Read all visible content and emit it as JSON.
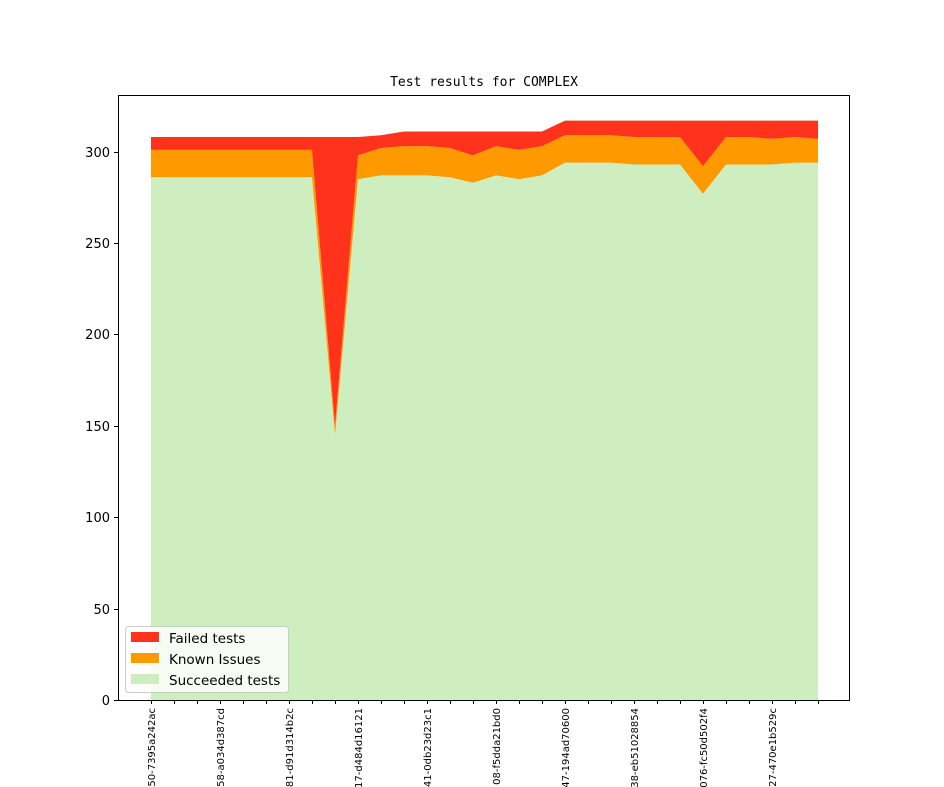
{
  "chart_data": {
    "type": "area",
    "stacked": true,
    "title": "Test results for COMPLEX",
    "xlabel": "",
    "ylabel": "",
    "ylim": [
      0,
      331
    ],
    "yticks": [
      0,
      50,
      100,
      150,
      200,
      250,
      300
    ],
    "tick_labels": [
      "50-7395a242ac",
      "58-a034d387cd",
      "81-d91d314b2c",
      "17-d484d16121",
      "41-0db23d23c1",
      "08-f5dda21bd0",
      "47-194ad70600",
      "38-eb51028854",
      "076-fc50d502f4",
      "27-470e1b529c"
    ],
    "tick_label_every": 3,
    "grid": false,
    "legend_position": "lower-left",
    "series": [
      {
        "name": "Succeeded tests",
        "color": "#cfeec0",
        "values": [
          286,
          286,
          286,
          286,
          286,
          286,
          286,
          286,
          145,
          285,
          287,
          287,
          287,
          286,
          283,
          287,
          285,
          287,
          294,
          294,
          294,
          293,
          293,
          293,
          277,
          293,
          293,
          293,
          294,
          294
        ]
      },
      {
        "name": "Known Issues",
        "color": "#ff9900",
        "values": [
          15,
          15,
          15,
          15,
          15,
          15,
          15,
          15,
          5,
          13,
          15,
          16,
          16,
          16,
          15,
          16,
          16,
          16,
          15,
          15,
          15,
          15,
          15,
          15,
          15,
          15,
          15,
          14,
          14,
          13
        ]
      },
      {
        "name": "Failed tests",
        "color": "#ff331c",
        "values": [
          7,
          7,
          7,
          7,
          7,
          7,
          7,
          7,
          158,
          10,
          7,
          8,
          8,
          9,
          13,
          8,
          10,
          8,
          8,
          8,
          8,
          9,
          9,
          9,
          25,
          9,
          9,
          10,
          9,
          10
        ]
      }
    ],
    "legend": [
      "Failed tests",
      "Known Issues",
      "Succeeded tests"
    ]
  }
}
